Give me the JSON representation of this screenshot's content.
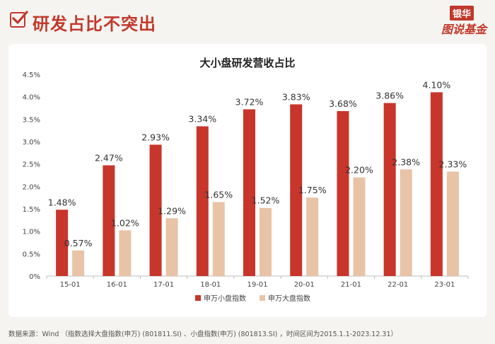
{
  "header": {
    "title": "研发占比不突出",
    "logo_top": "银华",
    "logo_bottom": "图说基金"
  },
  "colors": {
    "accent": "#c0392b",
    "series_small": "#c8352b",
    "series_large": "#e8c3a6"
  },
  "chart_data": {
    "type": "bar",
    "title": "大小盘研发营收占比",
    "categories": [
      "15-01",
      "16-01",
      "17-01",
      "18-01",
      "19-01",
      "20-01",
      "21-01",
      "22-01",
      "23-01"
    ],
    "series": [
      {
        "name": "申万小盘指数",
        "values": [
          1.48,
          2.47,
          2.93,
          3.34,
          3.72,
          3.83,
          3.68,
          3.86,
          4.1
        ]
      },
      {
        "name": "申万大盘指数",
        "values": [
          0.57,
          1.02,
          1.29,
          1.65,
          1.52,
          1.75,
          2.2,
          2.38,
          2.33
        ]
      }
    ],
    "small_labels": [
      "1.48%",
      "2.47%",
      "2.93%",
      "3.34%",
      "3.72%",
      "3.83%",
      "3.68%",
      "3.86%",
      "4.10%"
    ],
    "large_labels": [
      "0.57%",
      "1.02%",
      "1.29%",
      "1.65%",
      "1.52%",
      "1.75%",
      "2.20%",
      "2.38%",
      "2.33%"
    ],
    "ylim": [
      0,
      4.5
    ],
    "yticks": [
      0,
      0.5,
      1.0,
      1.5,
      2.0,
      2.5,
      3.0,
      3.5,
      4.0,
      4.5
    ],
    "ytick_labels": [
      "0%",
      "0.5%",
      "1.0%",
      "1.5%",
      "2.0%",
      "2.5%",
      "3.0%",
      "3.5%",
      "4.0%",
      "4.5%"
    ],
    "legend": "bottom-center",
    "grid": false
  },
  "footer": {
    "source": "数据来源：Wind （指数选择大盘指数(申万) (801811.SI) 、小盘指数(申万) (801813.SI) ，时间区间为2015.1.1-2023.12.31）"
  }
}
